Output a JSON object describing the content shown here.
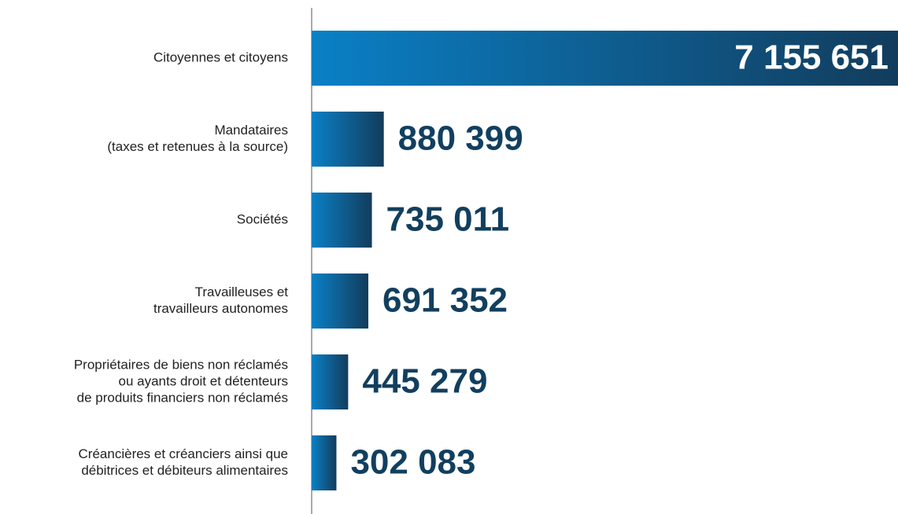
{
  "chart_data": {
    "type": "bar",
    "orientation": "horizontal",
    "categories": [
      [
        "Citoyennes et citoyens"
      ],
      [
        "Mandataires",
        "(taxes et retenues à la source)"
      ],
      [
        "Sociétés"
      ],
      [
        "Travailleuses et",
        "travailleurs autonomes"
      ],
      [
        "Propriétaires de biens non réclamés",
        "ou ayants droit et détenteurs",
        "de produits financiers non réclamés"
      ],
      [
        "Créancières et créanciers ainsi que",
        "débitrices et débiteurs alimentaires"
      ]
    ],
    "values": [
      7155651,
      880399,
      735011,
      691352,
      445279,
      302083
    ],
    "value_labels": [
      "7 155 651",
      "880 399",
      "735 011",
      "691 352",
      "445 279",
      "302 083"
    ],
    "gradient": [
      "#0a80c6",
      "#123c5c"
    ],
    "label_color": "#123f5f"
  }
}
